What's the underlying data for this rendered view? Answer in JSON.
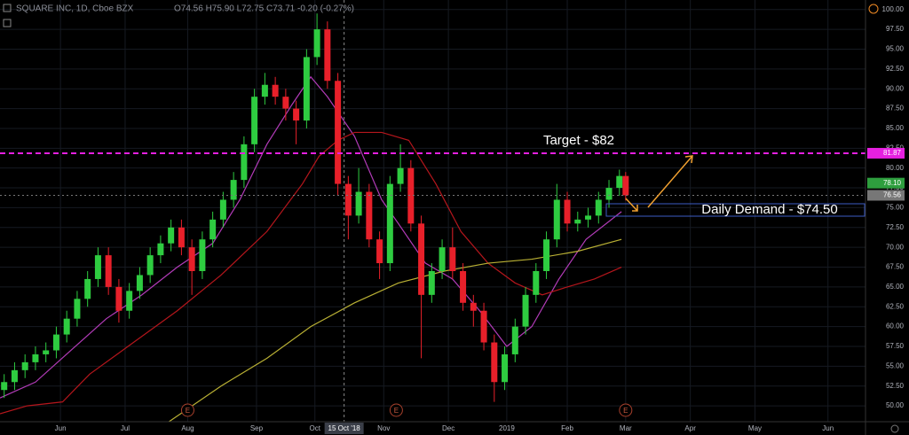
{
  "chart_data": {
    "type": "candlestick",
    "title": "SQUARE INC, 1D, Cboe BZX",
    "subtitle": "O74.56 H75.90 L72.75 C73.71 -0.20 (-0.27%)",
    "up_color": "#2ecc40",
    "down_color": "#e8202a",
    "x": [
      2,
      7,
      12,
      17,
      22,
      27,
      32,
      37,
      42,
      47,
      52,
      57,
      62,
      67,
      72,
      77,
      82,
      87,
      92,
      97,
      102,
      107,
      112,
      117,
      122,
      127,
      132,
      137,
      142,
      147,
      152,
      157,
      162,
      167,
      172,
      177,
      182,
      187,
      192,
      197,
      202,
      207,
      212,
      217,
      222,
      227,
      232,
      237,
      242,
      247,
      252,
      257,
      262,
      267,
      272,
      277,
      282,
      287,
      292,
      297,
      300
    ],
    "open": [
      52,
      53,
      54.5,
      55.5,
      56.5,
      57,
      59,
      61,
      63.5,
      66,
      69,
      65,
      62,
      64.5,
      66.5,
      69,
      70.5,
      72.5,
      70,
      67,
      71,
      73.5,
      76,
      78.5,
      83,
      89,
      90.5,
      89,
      87.5,
      86,
      94,
      97.5,
      91,
      78,
      74,
      77,
      71,
      68,
      78,
      80,
      73,
      64,
      67,
      70,
      67,
      63,
      62,
      58,
      53,
      56.5,
      60,
      64,
      67,
      71,
      76,
      73,
      73.5,
      74,
      76,
      77.5,
      79
    ],
    "high": [
      54,
      55.5,
      56.5,
      57.5,
      58,
      60,
      62,
      64.5,
      67,
      70,
      70,
      66,
      65.5,
      67.5,
      70,
      71.5,
      73.5,
      73.5,
      71,
      72,
      74.5,
      77,
      79.5,
      84,
      90,
      92,
      91.5,
      90,
      88.5,
      95,
      99.5,
      98.5,
      92,
      79,
      80,
      78,
      72,
      79,
      83,
      81,
      74,
      68,
      71,
      72.5,
      68,
      64,
      63,
      59,
      57.5,
      61,
      65,
      68,
      72,
      78,
      77,
      74.5,
      75,
      77,
      78.5,
      79.8,
      79.5
    ],
    "low": [
      51,
      52,
      53.5,
      54.5,
      55.5,
      56,
      58,
      60,
      62.5,
      65,
      64,
      60.5,
      61,
      63.5,
      65.5,
      68,
      69.5,
      69,
      64,
      66,
      70,
      72.5,
      75,
      77.5,
      82,
      88,
      88,
      86,
      83,
      85,
      93,
      90,
      76.5,
      71,
      73,
      70,
      66,
      67,
      77,
      72,
      56,
      63,
      66,
      66,
      62,
      60,
      57,
      50.5,
      52,
      55.5,
      59,
      63,
      66,
      70,
      72,
      72,
      72.5,
      73,
      75,
      76.5,
      75.9
    ],
    "close": [
      53,
      54.5,
      55.5,
      56.5,
      57,
      59,
      61,
      63.5,
      66,
      69,
      65,
      62,
      64.5,
      66.5,
      69,
      70.5,
      72.5,
      70,
      67,
      71,
      73.5,
      76,
      78.5,
      83,
      89,
      90.5,
      89,
      87.5,
      86,
      94,
      97.5,
      91,
      78,
      74,
      77,
      71,
      68,
      78,
      80,
      73,
      64,
      67,
      70,
      67,
      63,
      62,
      58,
      53,
      56.5,
      60,
      64,
      67,
      71,
      76,
      73,
      73.5,
      74,
      76,
      77.5,
      79,
      76.56
    ],
    "moving_averages": [
      {
        "color": "#b23bb8",
        "x": [
          0,
          17,
          34,
          51,
          68,
          85,
          102,
          115,
          128,
          140,
          149,
          157,
          170,
          183,
          191,
          204,
          217,
          230,
          243,
          255,
          268,
          281,
          298
        ],
        "values": [
          51,
          53,
          57,
          61,
          64,
          67.5,
          70.5,
          76,
          83,
          88,
          91.5,
          89,
          84,
          76,
          73,
          68,
          66,
          62,
          57.5,
          60,
          66,
          71,
          74.5
        ]
      },
      {
        "color": "#b5161c",
        "x": [
          0,
          13,
          30,
          43,
          64,
          85,
          106,
          128,
          145,
          153,
          162,
          170,
          183,
          196,
          209,
          221,
          234,
          247,
          260,
          272,
          285,
          298
        ],
        "values": [
          49,
          50,
          50.5,
          54,
          58,
          62,
          66.5,
          72,
          78,
          81.5,
          83.5,
          84.5,
          84.5,
          83.5,
          78,
          72,
          68,
          65.5,
          64,
          65,
          66,
          67.5
        ]
      },
      {
        "color": "#b9b034",
        "x": [
          81,
          106,
          128,
          149,
          170,
          191,
          213,
          234,
          255,
          277,
          298
        ],
        "values": [
          48,
          52.5,
          56,
          60,
          63,
          65.5,
          67,
          68,
          68.5,
          69.5,
          71
        ]
      }
    ],
    "xlim": [
      0,
      415
    ],
    "ylim": [
      48,
      101.2
    ],
    "xticks": [
      {
        "value": 29,
        "label": "Jun"
      },
      {
        "value": 60,
        "label": "Jul"
      },
      {
        "value": 90,
        "label": "Aug"
      },
      {
        "value": 123,
        "label": "Sep"
      },
      {
        "value": 151,
        "label": "Oct"
      },
      {
        "value": 184,
        "label": "Nov"
      },
      {
        "value": 215,
        "label": "Dec"
      },
      {
        "value": 243,
        "label": "2019"
      },
      {
        "value": 272,
        "label": "Feb"
      },
      {
        "value": 300,
        "label": "Mar"
      },
      {
        "value": 331,
        "label": "Apr"
      },
      {
        "value": 362,
        "label": "May"
      },
      {
        "value": 397,
        "label": "Jun"
      }
    ],
    "yticks": [
      {
        "value": 50,
        "label": "50.00"
      },
      {
        "value": 52.5,
        "label": "52.50"
      },
      {
        "value": 55,
        "label": "55.00"
      },
      {
        "value": 57.5,
        "label": "57.50"
      },
      {
        "value": 60,
        "label": "60.00"
      },
      {
        "value": 62.5,
        "label": "62.50"
      },
      {
        "value": 65,
        "label": "65.00"
      },
      {
        "value": 67.5,
        "label": "67.50"
      },
      {
        "value": 70,
        "label": "70.00"
      },
      {
        "value": 72.5,
        "label": "72.50"
      },
      {
        "value": 75,
        "label": "75.00"
      },
      {
        "value": 77.5,
        "label": "77.50"
      },
      {
        "value": 80,
        "label": "80.00"
      },
      {
        "value": 82.5,
        "label": "82.50"
      },
      {
        "value": 85,
        "label": "85.00"
      },
      {
        "value": 87.5,
        "label": "87.50"
      },
      {
        "value": 90,
        "label": "90.00"
      },
      {
        "value": 92.5,
        "label": "92.50"
      },
      {
        "value": 95,
        "label": "95.00"
      },
      {
        "value": 97.5,
        "label": "97.50"
      },
      {
        "value": 100,
        "label": "100.00"
      }
    ],
    "grid": true,
    "hlines": [
      {
        "value": 81.87,
        "label": "81.87",
        "color": "#e620e0",
        "style": "dashed"
      },
      {
        "value": 76.56,
        "label": "76.56",
        "color": "#777777",
        "style": "dotted"
      }
    ],
    "price_tags": [
      {
        "value": 78.1,
        "label": "78.10",
        "color": "#2e9e3e"
      }
    ],
    "crosshair": {
      "x": 165,
      "label": "15 Oct '18"
    },
    "earnings": {
      "x": [
        90,
        190,
        300
      ],
      "label": "E"
    },
    "annotations": [
      {
        "text": "Target - $82"
      },
      {
        "text": "Daily Demand - $74.50"
      }
    ]
  }
}
